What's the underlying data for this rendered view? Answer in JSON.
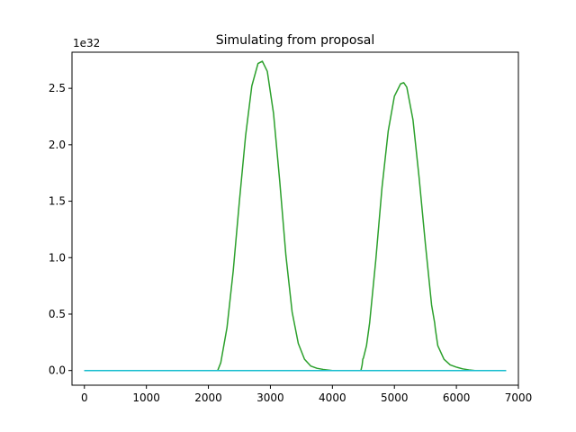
{
  "chart_data": {
    "type": "line",
    "title": "Simulating from proposal",
    "xlabel": "",
    "ylabel": "",
    "y_offset_label": "1e32",
    "xlim": [
      -200,
      7000
    ],
    "ylim": [
      -0.13,
      2.82
    ],
    "xticks": [
      0,
      1000,
      2000,
      3000,
      4000,
      5000,
      6000,
      7000
    ],
    "xtick_labels": [
      "0",
      "1000",
      "2000",
      "3000",
      "4000",
      "5000",
      "6000",
      "7000"
    ],
    "yticks": [
      0.0,
      0.5,
      1.0,
      1.5,
      2.0,
      2.5
    ],
    "ytick_labels": [
      "0.0",
      "0.5",
      "1.0",
      "1.5",
      "2.0",
      "2.5"
    ],
    "grid": false,
    "series": [
      {
        "color": "#2ca02c",
        "x": [
          0,
          2150,
          2200,
          2300,
          2400,
          2500,
          2600,
          2700,
          2800,
          2870,
          2950,
          3050,
          3150,
          3250,
          3350,
          3450,
          3550,
          3650,
          3750,
          3850,
          4000,
          4460,
          4480,
          4490,
          4500,
          4550,
          4600,
          4700,
          4800,
          4900,
          5000,
          5100,
          5150,
          5200,
          5300,
          5400,
          5500,
          5600,
          5650,
          5660,
          5700,
          5800,
          5900,
          6000,
          6100,
          6200,
          6300,
          6800
        ],
        "y": [
          0,
          0,
          0.07,
          0.38,
          0.88,
          1.5,
          2.08,
          2.52,
          2.72,
          2.74,
          2.65,
          2.28,
          1.68,
          1.02,
          0.52,
          0.24,
          0.1,
          0.04,
          0.02,
          0.01,
          0.0,
          0.0,
          0.05,
          0.1,
          0.11,
          0.22,
          0.42,
          0.98,
          1.62,
          2.12,
          2.43,
          2.54,
          2.55,
          2.51,
          2.22,
          1.7,
          1.12,
          0.58,
          0.42,
          0.37,
          0.22,
          0.1,
          0.05,
          0.03,
          0.015,
          0.006,
          0.0,
          0.0
        ]
      },
      {
        "color": "#1f77b4",
        "x": [
          0,
          6800
        ],
        "y": [
          0,
          0
        ]
      },
      {
        "color": "#17becf",
        "x": [
          0,
          6800
        ],
        "y": [
          0,
          0
        ]
      }
    ]
  }
}
